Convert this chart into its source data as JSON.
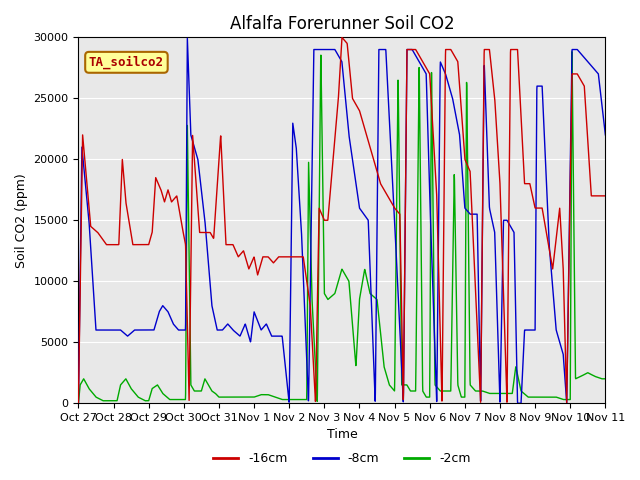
{
  "title": "Alfalfa Forerunner Soil CO2",
  "ylabel": "Soil CO2 (ppm)",
  "xlabel": "Time",
  "sensor_label": "TA_soilco2",
  "ylim": [
    0,
    30000
  ],
  "legend_labels": [
    "-16cm",
    "-8cm",
    "-2cm"
  ],
  "line_colors": [
    "#cc0000",
    "#0000cc",
    "#00aa00"
  ],
  "xtick_labels": [
    "Oct 27",
    "Oct 28",
    "Oct 29",
    "Oct 30",
    "Oct 31",
    "Nov 1",
    "Nov 2",
    "Nov 3",
    "Nov 4",
    "Nov 5",
    "Nov 6",
    "Nov 7",
    "Nov 8",
    "Nov 9",
    "Nov 10",
    "Nov 11"
  ],
  "plot_bg_color": "#e8e8e8",
  "title_fontsize": 12,
  "axis_label_fontsize": 9,
  "tick_fontsize": 8,
  "legend_fontsize": 9,
  "sensor_box_color": "#ffff99",
  "sensor_box_edge": "#aa6600",
  "sensor_text_color": "#aa0000"
}
